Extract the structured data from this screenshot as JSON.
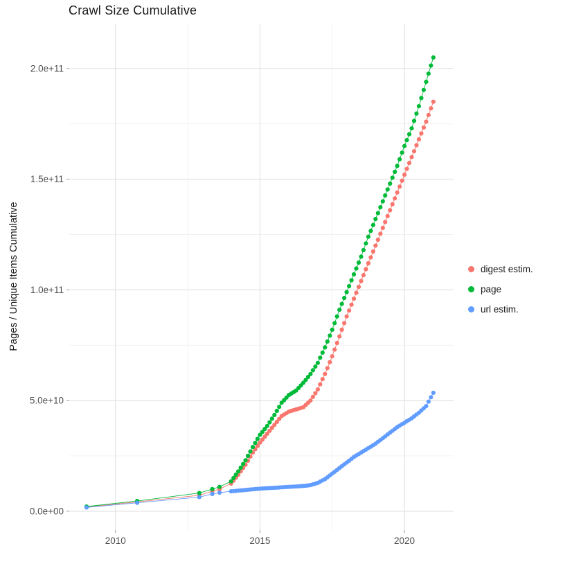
{
  "chart_data": {
    "type": "scatter",
    "title": "Crawl Size Cumulative",
    "xlabel": "",
    "ylabel": "Pages / Unique Items Cumulative",
    "xlim": [
      2008.4,
      2021.7
    ],
    "ylim": [
      -8500000000.0,
      220000000000.0
    ],
    "grid": "on",
    "legend_position": "right",
    "x_ticks": [
      {
        "v": 2010,
        "label": "2010"
      },
      {
        "v": 2015,
        "label": "2015"
      },
      {
        "v": 2020,
        "label": "2020"
      }
    ],
    "x_minor_ticks": [
      2012.5,
      2017.5
    ],
    "y_ticks": [
      {
        "v": 0,
        "label": "0.0e+00"
      },
      {
        "v": 50000000000.0,
        "label": "5.0e+10"
      },
      {
        "v": 100000000000.0,
        "label": "1.0e+11"
      },
      {
        "v": 150000000000.0,
        "label": "1.5e+11"
      },
      {
        "v": 200000000000.0,
        "label": "2.0e+11"
      }
    ],
    "y_minor_ticks": [
      25000000000.0,
      75000000000.0,
      125000000000.0,
      175000000000.0
    ],
    "dense_from": 2013.95,
    "dense_step": 0.0833,
    "series": [
      {
        "name": "digest estim.",
        "color": "#F8766D",
        "points": [
          [
            2009.0,
            1900000000.0
          ],
          [
            2010.75,
            4200000000.0
          ],
          [
            2012.9,
            7200000000.0
          ],
          [
            2013.35,
            9000000000.0
          ],
          [
            2013.6,
            10000000000.0
          ],
          [
            2014.0,
            12500000000.0
          ],
          [
            2014.25,
            16500000000.0
          ],
          [
            2014.5,
            21000000000.0
          ],
          [
            2014.75,
            26500000000.0
          ],
          [
            2015.0,
            31000000000.0
          ],
          [
            2015.25,
            35000000000.0
          ],
          [
            2015.5,
            39000000000.0
          ],
          [
            2015.75,
            43000000000.0
          ],
          [
            2016.0,
            45000000000.0
          ],
          [
            2016.25,
            46000000000.0
          ],
          [
            2016.5,
            47000000000.0
          ],
          [
            2016.75,
            50000000000.0
          ],
          [
            2017.0,
            55000000000.0
          ],
          [
            2017.25,
            62000000000.0
          ],
          [
            2017.5,
            70000000000.0
          ],
          [
            2017.75,
            79000000000.0
          ],
          [
            2018.0,
            88000000000.0
          ],
          [
            2018.25,
            96000000000.0
          ],
          [
            2018.5,
            104000000000.0
          ],
          [
            2018.75,
            112000000000.0
          ],
          [
            2019.0,
            120000000000.0
          ],
          [
            2019.25,
            128000000000.0
          ],
          [
            2019.5,
            136000000000.0
          ],
          [
            2019.75,
            144000000000.0
          ],
          [
            2020.0,
            152000000000.0
          ],
          [
            2020.25,
            160000000000.0
          ],
          [
            2020.5,
            168000000000.0
          ],
          [
            2020.75,
            176000000000.0
          ],
          [
            2021.0,
            185000000000.0
          ]
        ]
      },
      {
        "name": "page",
        "color": "#00BA38",
        "points": [
          [
            2009.0,
            2100000000.0
          ],
          [
            2010.75,
            4600000000.0
          ],
          [
            2012.9,
            8200000000.0
          ],
          [
            2013.35,
            10000000000.0
          ],
          [
            2013.6,
            11000000000.0
          ],
          [
            2014.0,
            13500000000.0
          ],
          [
            2014.25,
            18000000000.0
          ],
          [
            2014.5,
            23000000000.0
          ],
          [
            2014.75,
            29000000000.0
          ],
          [
            2015.0,
            34500000000.0
          ],
          [
            2015.25,
            38500000000.0
          ],
          [
            2015.5,
            43500000000.0
          ],
          [
            2015.75,
            49000000000.0
          ],
          [
            2016.0,
            52500000000.0
          ],
          [
            2016.25,
            54500000000.0
          ],
          [
            2016.5,
            58000000000.0
          ],
          [
            2016.75,
            62000000000.0
          ],
          [
            2017.0,
            67000000000.0
          ],
          [
            2017.25,
            74000000000.0
          ],
          [
            2017.5,
            82000000000.0
          ],
          [
            2017.75,
            91000000000.0
          ],
          [
            2018.0,
            99000000000.0
          ],
          [
            2018.25,
            107000000000.0
          ],
          [
            2018.5,
            115000000000.0
          ],
          [
            2018.75,
            124000000000.0
          ],
          [
            2019.0,
            132000000000.0
          ],
          [
            2019.25,
            140000000000.0
          ],
          [
            2019.5,
            148000000000.0
          ],
          [
            2019.75,
            156000000000.0
          ],
          [
            2020.0,
            165000000000.0
          ],
          [
            2020.25,
            173000000000.0
          ],
          [
            2020.5,
            183000000000.0
          ],
          [
            2020.75,
            194000000000.0
          ],
          [
            2021.0,
            205000000000.0
          ]
        ]
      },
      {
        "name": "url estim.",
        "color": "#619CFF",
        "points": [
          [
            2009.0,
            1700000000.0
          ],
          [
            2010.75,
            3800000000.0
          ],
          [
            2012.9,
            6400000000.0
          ],
          [
            2013.35,
            7800000000.0
          ],
          [
            2013.6,
            8400000000.0
          ],
          [
            2014.0,
            9000000000.0
          ],
          [
            2014.25,
            9300000000.0
          ],
          [
            2014.5,
            9600000000.0
          ],
          [
            2014.75,
            9900000000.0
          ],
          [
            2015.0,
            10200000000.0
          ],
          [
            2015.25,
            10400000000.0
          ],
          [
            2015.5,
            10600000000.0
          ],
          [
            2015.75,
            10800000000.0
          ],
          [
            2016.0,
            11000000000.0
          ],
          [
            2016.25,
            11200000000.0
          ],
          [
            2016.5,
            11400000000.0
          ],
          [
            2016.75,
            11800000000.0
          ],
          [
            2017.0,
            12800000000.0
          ],
          [
            2017.25,
            14500000000.0
          ],
          [
            2017.5,
            17000000000.0
          ],
          [
            2017.75,
            19500000000.0
          ],
          [
            2018.0,
            22000000000.0
          ],
          [
            2018.25,
            24500000000.0
          ],
          [
            2018.5,
            26500000000.0
          ],
          [
            2018.75,
            28500000000.0
          ],
          [
            2019.0,
            30500000000.0
          ],
          [
            2019.25,
            33000000000.0
          ],
          [
            2019.5,
            35500000000.0
          ],
          [
            2019.75,
            38000000000.0
          ],
          [
            2020.0,
            40000000000.0
          ],
          [
            2020.25,
            42000000000.0
          ],
          [
            2020.5,
            44500000000.0
          ],
          [
            2020.75,
            47500000000.0
          ],
          [
            2021.0,
            53500000000.0
          ]
        ]
      }
    ]
  }
}
